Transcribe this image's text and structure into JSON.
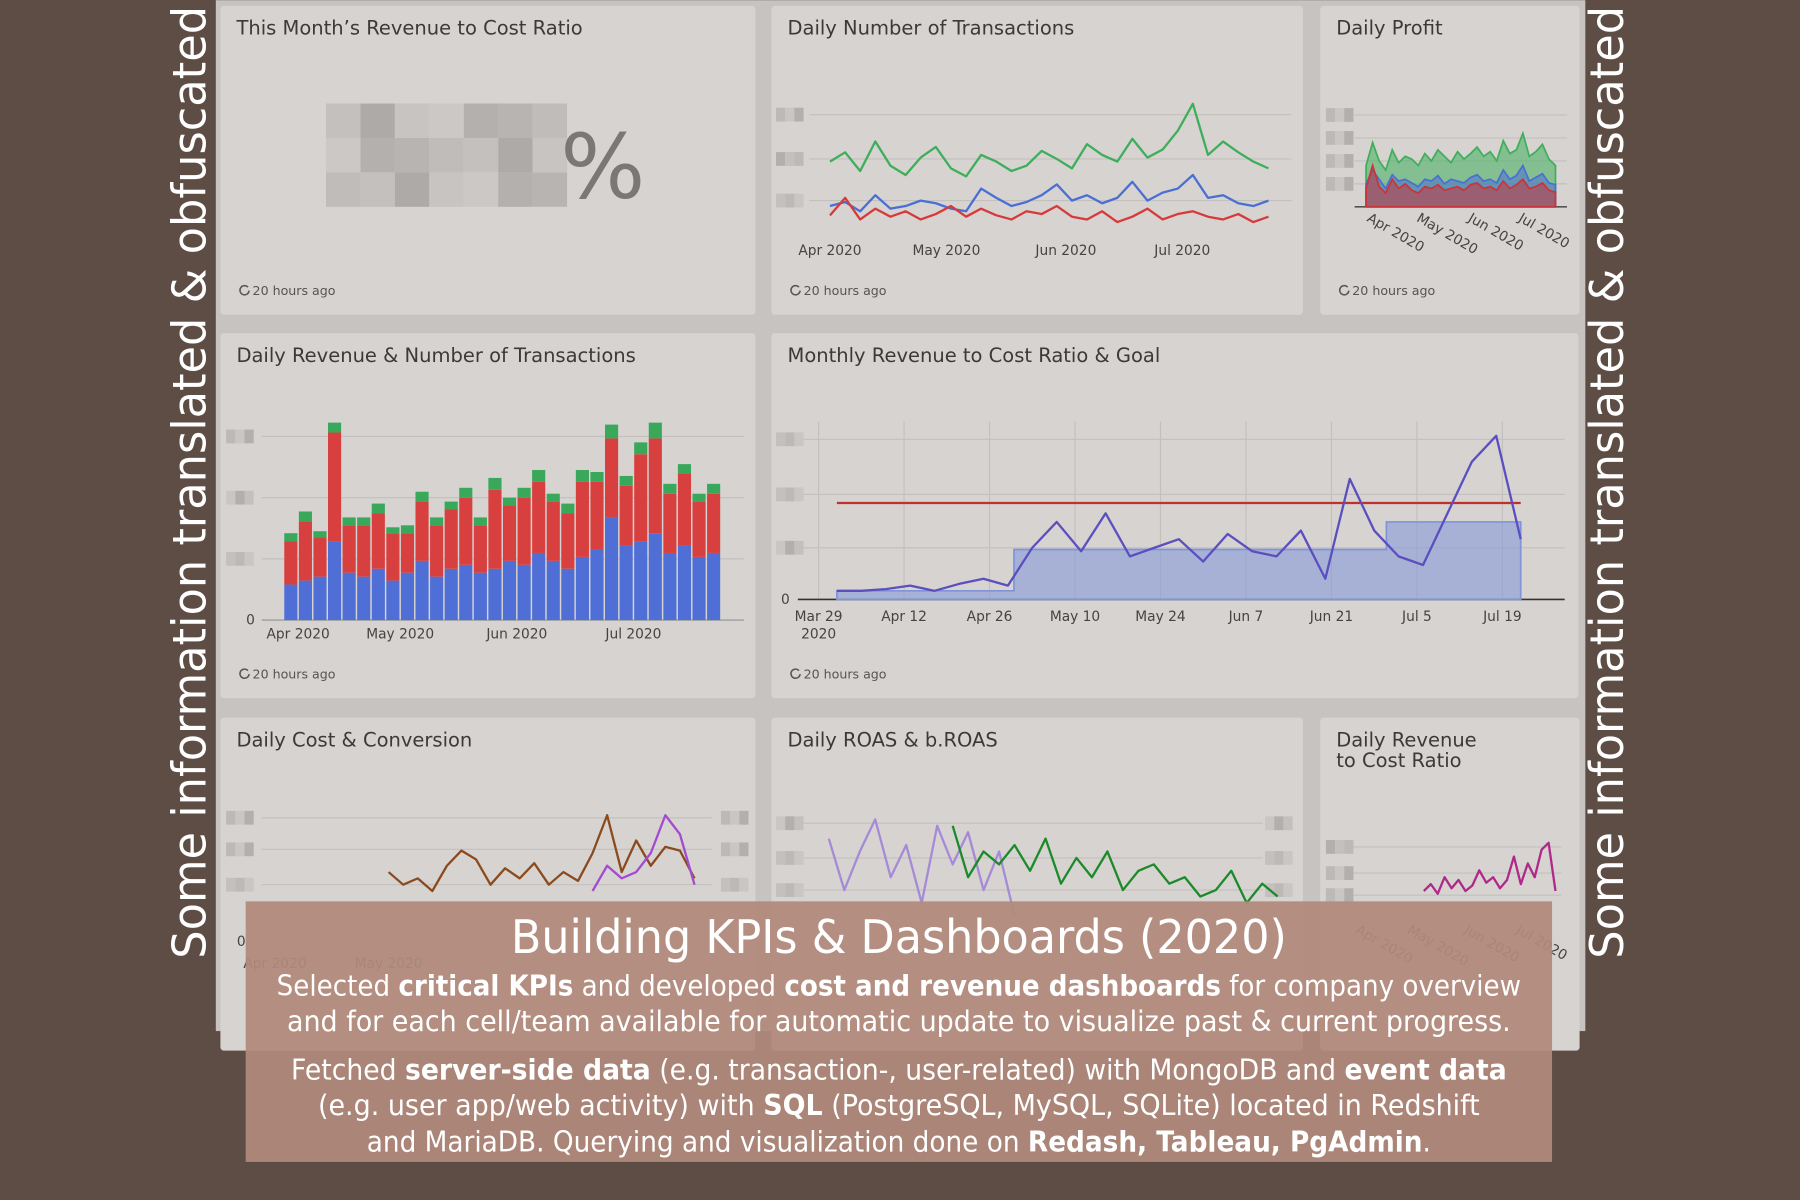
{
  "side_note": "Some information translated & obfuscated",
  "panels": [
    {
      "title": "This Month’s Revenue to Cost Ratio",
      "value_suffix": "%",
      "updated": "20 hours ago"
    },
    {
      "title": "Daily Number of Transactions",
      "updated": "20 hours ago",
      "chart": {
        "type": "line",
        "xlim": [
          0,
          29
        ],
        "ylim": [
          0,
          100
        ],
        "grid_values": [
          26,
          57,
          90
        ],
        "xticks": [
          {
            "value": 0,
            "label": "Apr 2020"
          },
          {
            "value": 7.7,
            "label": "May 2020"
          },
          {
            "value": 15.6,
            "label": "Jun 2020"
          },
          {
            "value": 23.3,
            "label": "Jul 2020"
          }
        ],
        "series": [
          {
            "color": "#3fae5b",
            "values": [
              55,
              62,
              48,
              70,
              52,
              45,
              58,
              66,
              50,
              44,
              60,
              55,
              48,
              52,
              63,
              57,
              50,
              68,
              60,
              55,
              72,
              58,
              64,
              78,
              98,
              60,
              70,
              62,
              55,
              50
            ]
          },
          {
            "color": "#4a6fd4",
            "values": [
              22,
              25,
              18,
              30,
              20,
              22,
              26,
              24,
              20,
              18,
              35,
              28,
              22,
              25,
              30,
              38,
              26,
              30,
              24,
              28,
              40,
              26,
              32,
              35,
              45,
              28,
              30,
              24,
              22,
              26
            ]
          },
          {
            "color": "#d63a3a",
            "values": [
              15,
              28,
              12,
              20,
              14,
              18,
              12,
              16,
              22,
              14,
              20,
              15,
              12,
              18,
              16,
              22,
              14,
              12,
              18,
              10,
              14,
              20,
              12,
              16,
              18,
              14,
              12,
              16,
              10,
              14
            ]
          }
        ]
      }
    },
    {
      "title": "Daily Profit",
      "updated": "20 hours ago",
      "chart": {
        "type": "area",
        "xlim": [
          0,
          29
        ],
        "ylim": [
          0,
          100
        ],
        "grid_values": [
          100,
          75,
          50,
          25
        ],
        "xtick_rotation": 30,
        "xticks": [
          {
            "value": 0,
            "label": "Apr 2020"
          },
          {
            "value": 7.6,
            "label": "May 2020"
          },
          {
            "value": 15.5,
            "label": "Jun 2020"
          },
          {
            "value": 23.2,
            "label": "Jul 2020"
          }
        ],
        "series": [
          {
            "color": "#3fae5b",
            "values": [
              45,
              70,
              50,
              40,
              62,
              48,
              55,
              52,
              45,
              58,
              50,
              62,
              55,
              48,
              60,
              52,
              58,
              65,
              55,
              60,
              50,
              72,
              58,
              62,
              80,
              55,
              60,
              68,
              52,
              45
            ]
          },
          {
            "color": "#4a6fd4",
            "values": [
              25,
              40,
              30,
              20,
              35,
              28,
              30,
              26,
              22,
              30,
              28,
              34,
              25,
              30,
              28,
              26,
              32,
              35,
              28,
              30,
              26,
              40,
              30,
              34,
              45,
              28,
              32,
              36,
              26,
              24
            ]
          },
          {
            "color": "#c9343a",
            "values": [
              20,
              45,
              22,
              15,
              30,
              20,
              25,
              18,
              15,
              22,
              20,
              24,
              18,
              20,
              22,
              18,
              24,
              26,
              20,
              22,
              18,
              28,
              20,
              24,
              30,
              20,
              22,
              26,
              18,
              16
            ]
          }
        ]
      }
    },
    {
      "title": "Daily Revenue & Number of Transactions",
      "updated": "20 hours ago",
      "chart": {
        "type": "bar",
        "stacked": true,
        "xlim": [
          -0.5,
          29.5
        ],
        "ylim": [
          0,
          100
        ],
        "yticks": [
          0
        ],
        "grid_values": [
          93,
          62,
          31
        ],
        "xticks": [
          {
            "value": 0.5,
            "label": "Apr 2020"
          },
          {
            "value": 7.5,
            "label": "May 2020"
          },
          {
            "value": 15.5,
            "label": "Jun 2020"
          },
          {
            "value": 23.5,
            "label": "Jul 2020"
          }
        ],
        "series": [
          {
            "color": "#4f6fd6",
            "values": [
              18,
              20,
              22,
              40,
              24,
              22,
              26,
              20,
              24,
              30,
              22,
              26,
              28,
              24,
              26,
              30,
              28,
              34,
              30,
              26,
              32,
              36,
              52,
              38,
              40,
              44,
              34,
              38,
              32,
              34
            ]
          },
          {
            "color": "#d84040",
            "values": [
              22,
              30,
              20,
              55,
              24,
              26,
              28,
              24,
              20,
              30,
              26,
              30,
              34,
              24,
              40,
              28,
              34,
              36,
              30,
              28,
              38,
              34,
              40,
              30,
              44,
              48,
              30,
              36,
              28,
              30
            ]
          },
          {
            "color": "#3aa85a",
            "values": [
              4,
              5,
              3,
              5,
              4,
              4,
              5,
              3,
              4,
              5,
              4,
              4,
              5,
              4,
              6,
              4,
              5,
              6,
              4,
              5,
              6,
              5,
              7,
              5,
              6,
              8,
              5,
              5,
              4,
              5
            ]
          }
        ]
      }
    },
    {
      "title": "Monthly Revenue to Cost Ratio & Goal",
      "updated": "20 hours ago",
      "chart": {
        "type": "combo",
        "xlim": [
          -3.4,
          122.2
        ],
        "ylim": [
          0,
          100
        ],
        "yticks": [
          0
        ],
        "grid_values": [
          93,
          61,
          30
        ],
        "xgrid": true,
        "xticks": [
          {
            "value": 0,
            "label": [
              "Mar 29",
              "2020"
            ]
          },
          {
            "value": 14,
            "label": "Apr 12"
          },
          {
            "value": 28,
            "label": "Apr 26"
          },
          {
            "value": 42,
            "label": "May 10"
          },
          {
            "value": 56,
            "label": "May 24"
          },
          {
            "value": 70,
            "label": "Jun 7"
          },
          {
            "value": 84,
            "label": "Jun 21"
          },
          {
            "value": 98,
            "label": "Jul 5"
          },
          {
            "value": 112,
            "label": "Jul 19"
          }
        ],
        "series": [
          {
            "type": "area",
            "color": "#7f95d8",
            "x": [
              3,
              32,
              32,
              93,
              93,
              115
            ],
            "values": [
              5,
              5,
              29,
              29,
              45,
              45
            ]
          },
          {
            "type": "line",
            "color": "#c0302f",
            "x": [
              3,
              115
            ],
            "values": [
              56,
              56
            ]
          },
          {
            "type": "line",
            "color": "#5b4fc0",
            "x": [
              3,
              7,
              11,
              15,
              19,
              23,
              27,
              31,
              35,
              39,
              43,
              47,
              51,
              55,
              59,
              63,
              67,
              71,
              75,
              79,
              83,
              87,
              91,
              95,
              99,
              103,
              107,
              111,
              115
            ],
            "values": [
              5,
              5,
              6,
              8,
              5,
              9,
              12,
              8,
              30,
              45,
              28,
              50,
              25,
              30,
              35,
              22,
              38,
              28,
              25,
              40,
              12,
              70,
              40,
              25,
              20,
              50,
              80,
              95,
              35
            ]
          }
        ]
      }
    },
    {
      "title": "Daily Cost & Conversion",
      "chart": {
        "type": "line",
        "xlim": [
          0,
          29
        ],
        "ylim": [
          0,
          100
        ],
        "yticks": [
          0
        ],
        "grid_values": [
          98,
          73,
          45
        ],
        "xticks": [
          {
            "value": 0.2,
            "label": "Apr 2020"
          },
          {
            "value": 8,
            "label": "May 2020"
          }
        ],
        "series": [
          {
            "color": "#8b4a1e",
            "values": [
              null,
              null,
              null,
              null,
              null,
              null,
              null,
              null,
              55,
              45,
              50,
              40,
              60,
              72,
              65,
              45,
              58,
              50,
              62,
              45,
              55,
              48,
              70,
              100,
              55,
              80,
              60,
              75,
              72,
              50
            ]
          },
          {
            "color": "#a24bd0",
            "values": [
              null,
              null,
              null,
              null,
              null,
              null,
              null,
              null,
              null,
              null,
              null,
              null,
              null,
              null,
              null,
              null,
              null,
              null,
              null,
              null,
              null,
              null,
              40,
              60,
              50,
              55,
              70,
              100,
              85,
              45
            ]
          }
        ]
      }
    },
    {
      "title": "Daily ROAS & b.ROAS",
      "chart": {
        "type": "line",
        "xlim": [
          0,
          29
        ],
        "ylim": [
          0,
          100
        ],
        "grid_values": [
          92,
          65,
          40
        ],
        "series": [
          {
            "color": "#a58ad8",
            "values": [
              80,
              40,
              70,
              95,
              50,
              75,
              30,
              90,
              60,
              85,
              40,
              70,
              20,
              null,
              null,
              null,
              null,
              null,
              null,
              null,
              null,
              null,
              null,
              null,
              null,
              null,
              null,
              null,
              null,
              null
            ]
          },
          {
            "color": "#1c8a2a",
            "values": [
              null,
              null,
              null,
              null,
              null,
              null,
              null,
              null,
              90,
              50,
              70,
              60,
              75,
              55,
              80,
              45,
              65,
              50,
              70,
              40,
              55,
              60,
              45,
              50,
              35,
              40,
              55,
              30,
              45,
              35
            ]
          }
        ]
      }
    },
    {
      "title": [
        "Daily Revenue",
        "to Cost Ratio"
      ],
      "chart": {
        "type": "line",
        "xlim": [
          0,
          29
        ],
        "ylim": [
          0,
          100
        ],
        "grid_values": [
          52,
          33,
          17
        ],
        "xtick_rotation": 30,
        "xticks": [
          {
            "value": 0,
            "label": "Apr 2020"
          },
          {
            "value": 7.5,
            "label": "May 2020"
          },
          {
            "value": 15.7,
            "label": "Jun 2020"
          },
          {
            "value": 23.2,
            "label": "Jul 2020"
          }
        ],
        "series": [
          {
            "color": "#b0288a",
            "values": [
              null,
              null,
              null,
              null,
              null,
              null,
              null,
              null,
              null,
              null,
              20,
              25,
              18,
              30,
              22,
              28,
              20,
              24,
              35,
              26,
              30,
              22,
              28,
              45,
              25,
              40,
              30,
              50,
              55,
              20
            ]
          }
        ]
      }
    }
  ],
  "overlay": {
    "title": "Building KPIs & Dashboards (2020)",
    "paragraphs": [
      [
        [
          {
            "text": "Selected "
          },
          {
            "text": "critical KPIs",
            "bold": true
          },
          {
            "text": " and developed "
          },
          {
            "text": "cost and revenue dashboards",
            "bold": true
          },
          {
            "text": " for company overview"
          }
        ],
        [
          {
            "text": "and for each cell/team available for automatic update to visualize past & current progress."
          }
        ]
      ],
      [
        [
          {
            "text": "Fetched "
          },
          {
            "text": "server-side data",
            "bold": true
          },
          {
            "text": " (e.g. transaction-, user-related) with MongoDB and "
          },
          {
            "text": "event data",
            "bold": true
          }
        ],
        [
          {
            "text": "(e.g. user app/web activity) with "
          },
          {
            "text": "SQL",
            "bold": true
          },
          {
            "text": " (PostgreSQL, MySQL, SQLite) located in Redshift"
          }
        ],
        [
          {
            "text": "and MariaDB. Querying and visualization done on "
          },
          {
            "text": "Redash, Tableau, PgAdmin",
            "bold": true
          },
          {
            "text": "."
          }
        ]
      ]
    ]
  }
}
